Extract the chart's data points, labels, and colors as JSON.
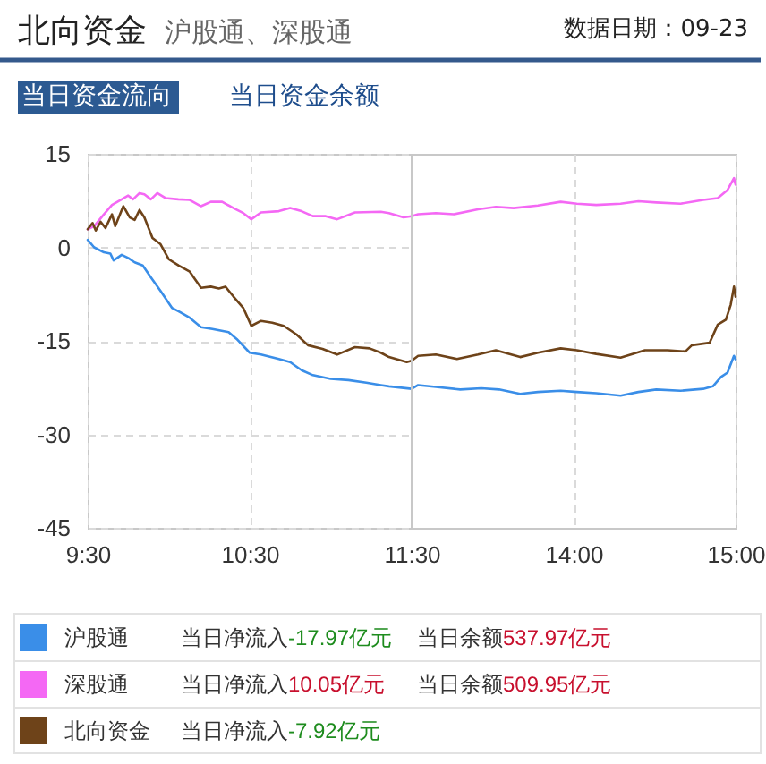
{
  "chart_data": [
    {
      "type": "line",
      "title": "北向资金",
      "subtitle": "沪股通、深股通",
      "annotations": [
        "数据日期：09-23",
        "当日资金流向",
        "当日资金余额",
        "当日净流入",
        "-17.97亿元",
        "当日余额",
        "537.97亿元",
        "当日净流入",
        "10.05亿元",
        "当日余额",
        "509.95亿元",
        "当日净流入",
        "-7.92亿元"
      ],
      "xlim": [
        9.5,
        11.5
      ],
      "xticks": [
        {
          "value": 9.5,
          "label": "9:30"
        },
        {
          "value": 10.5,
          "label": "10:30"
        },
        {
          "value": 11.5,
          "label": "11:30"
        }
      ],
      "ylim": [
        -45,
        15
      ],
      "yticks": [
        -45,
        -30,
        -15,
        0,
        15
      ],
      "grid": true,
      "legend": "bottom",
      "series": [
        {
          "name": "沪股通",
          "color": "#3a8ee8",
          "x": [
            9.5,
            9.54,
            9.6,
            9.64,
            9.66,
            9.71,
            9.75,
            9.79,
            9.84,
            9.89,
            9.95,
            10.02,
            10.07,
            10.13,
            10.2,
            10.27,
            10.37,
            10.42,
            10.5,
            10.57,
            10.68,
            10.75,
            10.82,
            10.89,
            11.0,
            11.11,
            11.22,
            11.31,
            11.36,
            11.5
          ],
          "values": [
            1.2,
            0.0,
            -0.8,
            -1.0,
            -2.1,
            -1.2,
            -1.7,
            -2.4,
            -2.9,
            -4.8,
            -7.0,
            -9.7,
            -10.4,
            -11.3,
            -12.8,
            -13.1,
            -13.6,
            -14.7,
            -16.9,
            -17.2,
            -17.9,
            -18.4,
            -19.7,
            -20.5,
            -21.1,
            -21.3,
            -21.7,
            -22.1,
            -22.3,
            -22.7
          ]
        },
        {
          "name": "深股通",
          "color": "#f468f4",
          "x": [
            9.5,
            9.54,
            9.6,
            9.65,
            9.71,
            9.75,
            9.78,
            9.82,
            9.85,
            9.89,
            9.93,
            9.98,
            10.06,
            10.13,
            10.2,
            10.26,
            10.33,
            10.4,
            10.46,
            10.51,
            10.57,
            10.68,
            10.75,
            10.82,
            10.89,
            10.97,
            11.04,
            11.15,
            11.31,
            11.36,
            11.45,
            11.5
          ],
          "values": [
            2.9,
            3.4,
            5.3,
            6.8,
            7.7,
            8.3,
            7.7,
            8.7,
            8.5,
            7.7,
            8.7,
            7.9,
            7.7,
            7.6,
            6.6,
            7.3,
            7.3,
            6.3,
            5.5,
            4.5,
            5.6,
            5.8,
            6.3,
            5.8,
            5.0,
            5.0,
            4.5,
            5.6,
            5.7,
            5.5,
            4.8,
            5.0
          ]
        },
        {
          "name": "北向资金",
          "color": "#6e4319",
          "x": [
            9.5,
            9.53,
            9.55,
            9.58,
            9.61,
            9.65,
            9.67,
            9.72,
            9.76,
            9.79,
            9.82,
            9.85,
            9.9,
            9.95,
            10.0,
            10.06,
            10.13,
            10.2,
            10.26,
            10.31,
            10.35,
            10.4,
            10.46,
            10.51,
            10.57,
            10.64,
            10.71,
            10.79,
            10.86,
            10.95,
            11.04,
            11.15,
            11.24,
            11.31,
            11.36,
            11.47,
            11.5
          ],
          "values": [
            2.9,
            3.9,
            2.7,
            4.1,
            3.1,
            5.3,
            3.4,
            6.6,
            4.8,
            4.4,
            6.0,
            4.8,
            1.5,
            0.5,
            -1.9,
            -2.9,
            -3.9,
            -6.5,
            -6.3,
            -6.6,
            -6.3,
            -7.9,
            -9.7,
            -12.6,
            -11.8,
            -12.1,
            -12.6,
            -14.0,
            -15.7,
            -16.3,
            -17.2,
            -16.0,
            -16.2,
            -16.9,
            -17.6,
            -18.4,
            -18.2
          ]
        }
      ]
    },
    {
      "type": "line",
      "xlim": [
        13,
        15
      ],
      "xticks": [
        {
          "value": 14,
          "label": "14:00"
        },
        {
          "value": 15,
          "label": "15:00"
        }
      ],
      "ylim": [
        -45,
        15
      ],
      "grid": true,
      "tick_labels": "x",
      "series": [
        {
          "color": "#3a8ee8",
          "x": [
            13.0,
            13.04,
            13.15,
            13.3,
            13.43,
            13.54,
            13.67,
            13.78,
            13.92,
            14.02,
            14.14,
            14.29,
            14.4,
            14.51,
            14.66,
            14.8,
            14.86,
            14.91,
            14.95,
            14.99,
            15.0
          ],
          "values": [
            -22.7,
            -22.1,
            -22.4,
            -22.8,
            -22.6,
            -22.8,
            -23.5,
            -23.2,
            -23.0,
            -23.2,
            -23.4,
            -23.8,
            -23.2,
            -22.8,
            -23.0,
            -22.7,
            -22.3,
            -20.8,
            -20.1,
            -17.4,
            -17.97
          ]
        },
        {
          "color": "#f468f4",
          "x": [
            13.0,
            13.04,
            13.15,
            13.26,
            13.41,
            13.52,
            13.63,
            13.78,
            13.92,
            14.02,
            14.14,
            14.29,
            14.4,
            14.51,
            14.66,
            14.8,
            14.89,
            14.95,
            14.99,
            15.0
          ],
          "values": [
            5.0,
            5.3,
            5.5,
            5.3,
            6.1,
            6.5,
            6.3,
            6.7,
            7.3,
            7.0,
            6.8,
            7.0,
            7.4,
            7.2,
            7.0,
            7.6,
            7.9,
            9.2,
            11.1,
            10.05
          ]
        },
        {
          "color": "#6e4319",
          "x": [
            13.0,
            13.04,
            13.15,
            13.28,
            13.41,
            13.52,
            13.67,
            13.78,
            13.92,
            14.02,
            14.14,
            14.29,
            14.44,
            14.58,
            14.69,
            14.73,
            14.84,
            14.89,
            14.94,
            14.97,
            14.99,
            15.0
          ],
          "values": [
            -18.2,
            -17.4,
            -17.2,
            -17.9,
            -17.2,
            -16.5,
            -17.6,
            -16.9,
            -16.2,
            -16.5,
            -17.1,
            -17.7,
            -16.5,
            -16.5,
            -16.7,
            -15.7,
            -15.3,
            -12.4,
            -11.6,
            -9.2,
            -6.3,
            -7.92
          ]
        }
      ]
    }
  ]
}
